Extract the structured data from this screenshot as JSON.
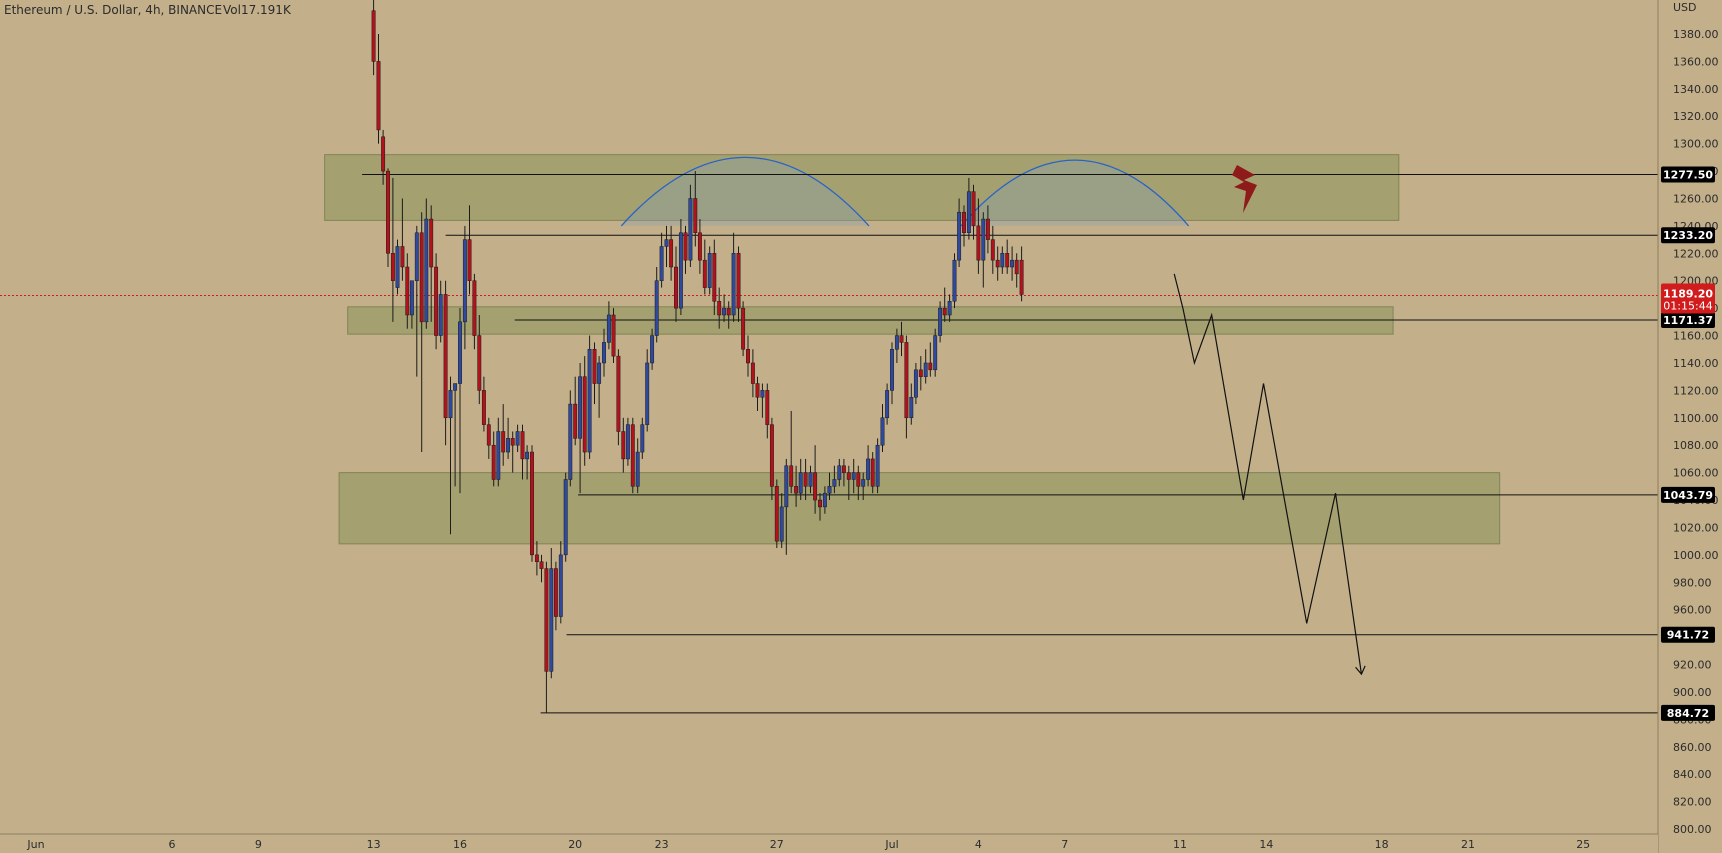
{
  "header": {
    "symbol": "Ethereum / U.S. Dollar, 4h, BINANCE",
    "volume": "Vol17.191K"
  },
  "colors": {
    "background": "#c3b08b",
    "bull": "#2f49a0",
    "bear": "#b3121d",
    "zone_fill": "#7f8f4f",
    "arc": "#2a62c8",
    "current_price_line": "#d01c1c"
  },
  "icons": {
    "lightning": "lightning-bolt-icon"
  },
  "chart_data": {
    "type": "candlestick",
    "currency_label": "USD",
    "ylim": [
      800,
      1400
    ],
    "y_ticks": [
      800,
      820,
      840,
      860,
      880,
      900,
      920,
      940,
      960,
      980,
      1000,
      1020,
      1040,
      1060,
      1080,
      1100,
      1120,
      1140,
      1160,
      1180,
      1200,
      1220,
      1240,
      1260,
      1280,
      1300,
      1320,
      1340,
      1360,
      1380
    ],
    "x_ticks": [
      {
        "label": "Jun",
        "x": 0
      },
      {
        "label": "6",
        "x": 5
      },
      {
        "label": "9",
        "x": 8
      },
      {
        "label": "13",
        "x": 12
      },
      {
        "label": "16",
        "x": 15
      },
      {
        "label": "20",
        "x": 19
      },
      {
        "label": "23",
        "x": 22
      },
      {
        "label": "27",
        "x": 26
      },
      {
        "label": "Jul",
        "x": 30
      },
      {
        "label": "4",
        "x": 33
      },
      {
        "label": "7",
        "x": 36
      },
      {
        "label": "11",
        "x": 40
      },
      {
        "label": "14",
        "x": 43
      },
      {
        "label": "18",
        "x": 47
      },
      {
        "label": "21",
        "x": 50
      },
      {
        "label": "25",
        "x": 54
      }
    ],
    "price_levels": [
      {
        "label": "1277.50",
        "value": 1277.5
      },
      {
        "label": "1233.20",
        "value": 1233.2
      },
      {
        "label": "1171.37",
        "value": 1171.37
      },
      {
        "label": "1043.79",
        "value": 1043.79
      },
      {
        "label": "941.72",
        "value": 941.72
      },
      {
        "label": "884.72",
        "value": 884.72
      }
    ],
    "current_price": {
      "value": 1189.2,
      "label": "1189.20",
      "countdown": "01:15:44"
    },
    "zones": [
      {
        "x_start": 10.3,
        "x_end": 47.6,
        "y_low": 1244,
        "y_high": 1292
      },
      {
        "x_start": 11.1,
        "x_end": 47.4,
        "y_low": 1161,
        "y_high": 1181
      },
      {
        "x_start": 10.8,
        "x_end": 51.1,
        "y_low": 1008,
        "y_high": 1060
      }
    ],
    "level_lines": [
      {
        "value": 1277.5,
        "x_start": 11.6
      },
      {
        "value": 1233.2,
        "x_start": 14.5
      },
      {
        "value": 1171.37,
        "x_start": 16.9
      },
      {
        "value": 1043.79,
        "x_start": 19.1
      },
      {
        "value": 941.72,
        "x_start": 18.7
      },
      {
        "value": 884.72,
        "x_start": 17.8
      }
    ],
    "arcs": [
      {
        "x_start": 20.6,
        "x_end": 29.2,
        "y_base": 1240,
        "y_top": 1290
      },
      {
        "x_start": 32.4,
        "x_end": 40.3,
        "y_base": 1240,
        "y_top": 1288
      }
    ],
    "projection": [
      {
        "x": 39.8,
        "y": 1205
      },
      {
        "x": 40.1,
        "y": 1180
      },
      {
        "x": 40.5,
        "y": 1140
      },
      {
        "x": 41.1,
        "y": 1175
      },
      {
        "x": 42.2,
        "y": 1040
      },
      {
        "x": 42.9,
        "y": 1125
      },
      {
        "x": 44.4,
        "y": 950
      },
      {
        "x": 45.4,
        "y": 1045
      },
      {
        "x": 46.3,
        "y": 913
      }
    ],
    "candles": [
      {
        "x": 12.0,
        "o": 1397,
        "h": 1420,
        "c": 1360,
        "l": 1350
      },
      {
        "x": 12.17,
        "o": 1360,
        "h": 1380,
        "c": 1310,
        "l": 1300
      },
      {
        "x": 12.33,
        "o": 1305,
        "h": 1310,
        "c": 1280,
        "l": 1270
      },
      {
        "x": 12.5,
        "o": 1280,
        "h": 1282,
        "c": 1220,
        "l": 1210
      },
      {
        "x": 12.67,
        "o": 1220,
        "h": 1275,
        "c": 1200,
        "l": 1170
      },
      {
        "x": 12.83,
        "o": 1195,
        "h": 1230,
        "c": 1225,
        "l": 1190
      },
      {
        "x": 13.0,
        "o": 1225,
        "h": 1260,
        "c": 1210,
        "l": 1200
      },
      {
        "x": 13.17,
        "o": 1210,
        "h": 1220,
        "c": 1175,
        "l": 1165
      },
      {
        "x": 13.33,
        "o": 1175,
        "h": 1200,
        "c": 1200,
        "l": 1165
      },
      {
        "x": 13.5,
        "o": 1200,
        "h": 1240,
        "c": 1235,
        "l": 1130
      },
      {
        "x": 13.67,
        "o": 1235,
        "h": 1250,
        "c": 1170,
        "l": 1075
      },
      {
        "x": 13.83,
        "o": 1170,
        "h": 1260,
        "c": 1245,
        "l": 1165
      },
      {
        "x": 14.0,
        "o": 1245,
        "h": 1255,
        "c": 1210,
        "l": 1170
      },
      {
        "x": 14.17,
        "o": 1210,
        "h": 1220,
        "c": 1160,
        "l": 1150
      },
      {
        "x": 14.33,
        "o": 1160,
        "h": 1200,
        "c": 1190,
        "l": 1155
      },
      {
        "x": 14.5,
        "o": 1190,
        "h": 1200,
        "c": 1100,
        "l": 1080
      },
      {
        "x": 14.67,
        "o": 1100,
        "h": 1130,
        "c": 1120,
        "l": 1015
      },
      {
        "x": 14.83,
        "o": 1120,
        "h": 1125,
        "c": 1125,
        "l": 1050
      },
      {
        "x": 15.0,
        "o": 1125,
        "h": 1180,
        "c": 1170,
        "l": 1045
      },
      {
        "x": 15.17,
        "o": 1170,
        "h": 1240,
        "c": 1230,
        "l": 1150
      },
      {
        "x": 15.33,
        "o": 1230,
        "h": 1255,
        "c": 1200,
        "l": 1190
      },
      {
        "x": 15.5,
        "o": 1200,
        "h": 1205,
        "c": 1160,
        "l": 1150
      },
      {
        "x": 15.67,
        "o": 1160,
        "h": 1175,
        "c": 1120,
        "l": 1110
      },
      {
        "x": 15.83,
        "o": 1120,
        "h": 1130,
        "c": 1095,
        "l": 1090
      },
      {
        "x": 16.0,
        "o": 1095,
        "h": 1100,
        "c": 1080,
        "l": 1070
      },
      {
        "x": 16.17,
        "o": 1080,
        "h": 1090,
        "c": 1055,
        "l": 1050
      },
      {
        "x": 16.33,
        "o": 1055,
        "h": 1100,
        "c": 1090,
        "l": 1050
      },
      {
        "x": 16.5,
        "o": 1090,
        "h": 1110,
        "c": 1075,
        "l": 1065
      },
      {
        "x": 16.67,
        "o": 1075,
        "h": 1100,
        "c": 1085,
        "l": 1070
      },
      {
        "x": 16.83,
        "o": 1085,
        "h": 1090,
        "c": 1080,
        "l": 1060
      },
      {
        "x": 17.0,
        "o": 1080,
        "h": 1095,
        "c": 1090,
        "l": 1075
      },
      {
        "x": 17.17,
        "o": 1090,
        "h": 1095,
        "c": 1070,
        "l": 1055
      },
      {
        "x": 17.33,
        "o": 1070,
        "h": 1080,
        "c": 1075,
        "l": 1055
      },
      {
        "x": 17.5,
        "o": 1075,
        "h": 1080,
        "c": 1000,
        "l": 995
      },
      {
        "x": 17.67,
        "o": 1000,
        "h": 1010,
        "c": 995,
        "l": 985
      },
      {
        "x": 17.83,
        "o": 995,
        "h": 1000,
        "c": 990,
        "l": 980
      },
      {
        "x": 18.0,
        "o": 990,
        "h": 995,
        "c": 915,
        "l": 885
      },
      {
        "x": 18.17,
        "o": 915,
        "h": 1005,
        "c": 990,
        "l": 910
      },
      {
        "x": 18.33,
        "o": 990,
        "h": 995,
        "c": 955,
        "l": 945
      },
      {
        "x": 18.5,
        "o": 955,
        "h": 1010,
        "c": 1000,
        "l": 950
      },
      {
        "x": 18.67,
        "o": 1000,
        "h": 1060,
        "c": 1055,
        "l": 995
      },
      {
        "x": 18.83,
        "o": 1055,
        "h": 1120,
        "c": 1110,
        "l": 1050
      },
      {
        "x": 19.0,
        "o": 1110,
        "h": 1130,
        "c": 1085,
        "l": 1080
      },
      {
        "x": 19.17,
        "o": 1085,
        "h": 1140,
        "c": 1130,
        "l": 1045
      },
      {
        "x": 19.33,
        "o": 1130,
        "h": 1145,
        "c": 1075,
        "l": 1065
      },
      {
        "x": 19.5,
        "o": 1075,
        "h": 1160,
        "c": 1150,
        "l": 1070
      },
      {
        "x": 19.67,
        "o": 1150,
        "h": 1155,
        "c": 1125,
        "l": 1110
      },
      {
        "x": 19.83,
        "o": 1125,
        "h": 1145,
        "c": 1140,
        "l": 1100
      },
      {
        "x": 20.0,
        "o": 1140,
        "h": 1165,
        "c": 1155,
        "l": 1130
      },
      {
        "x": 20.17,
        "o": 1155,
        "h": 1185,
        "c": 1175,
        "l": 1150
      },
      {
        "x": 20.33,
        "o": 1175,
        "h": 1180,
        "c": 1145,
        "l": 1140
      },
      {
        "x": 20.5,
        "o": 1145,
        "h": 1150,
        "c": 1090,
        "l": 1080
      },
      {
        "x": 20.67,
        "o": 1090,
        "h": 1100,
        "c": 1070,
        "l": 1060
      },
      {
        "x": 20.83,
        "o": 1070,
        "h": 1100,
        "c": 1095,
        "l": 1065
      },
      {
        "x": 21.0,
        "o": 1095,
        "h": 1100,
        "c": 1050,
        "l": 1045
      },
      {
        "x": 21.17,
        "o": 1050,
        "h": 1085,
        "c": 1075,
        "l": 1045
      },
      {
        "x": 21.33,
        "o": 1075,
        "h": 1100,
        "c": 1095,
        "l": 1070
      },
      {
        "x": 21.5,
        "o": 1095,
        "h": 1150,
        "c": 1140,
        "l": 1090
      },
      {
        "x": 21.67,
        "o": 1140,
        "h": 1165,
        "c": 1160,
        "l": 1135
      },
      {
        "x": 21.83,
        "o": 1160,
        "h": 1210,
        "c": 1200,
        "l": 1155
      },
      {
        "x": 22.0,
        "o": 1200,
        "h": 1235,
        "c": 1225,
        "l": 1195
      },
      {
        "x": 22.17,
        "o": 1225,
        "h": 1240,
        "c": 1230,
        "l": 1210
      },
      {
        "x": 22.33,
        "o": 1230,
        "h": 1240,
        "c": 1210,
        "l": 1200
      },
      {
        "x": 22.5,
        "o": 1210,
        "h": 1225,
        "c": 1180,
        "l": 1170
      },
      {
        "x": 22.67,
        "o": 1180,
        "h": 1245,
        "c": 1235,
        "l": 1175
      },
      {
        "x": 22.83,
        "o": 1235,
        "h": 1240,
        "c": 1215,
        "l": 1205
      },
      {
        "x": 23.0,
        "o": 1215,
        "h": 1270,
        "c": 1260,
        "l": 1210
      },
      {
        "x": 23.17,
        "o": 1260,
        "h": 1280,
        "c": 1235,
        "l": 1225
      },
      {
        "x": 23.33,
        "o": 1235,
        "h": 1245,
        "c": 1215,
        "l": 1205
      },
      {
        "x": 23.5,
        "o": 1215,
        "h": 1230,
        "c": 1195,
        "l": 1190
      },
      {
        "x": 23.67,
        "o": 1195,
        "h": 1225,
        "c": 1220,
        "l": 1190
      },
      {
        "x": 23.83,
        "o": 1220,
        "h": 1230,
        "c": 1185,
        "l": 1175
      },
      {
        "x": 24.0,
        "o": 1185,
        "h": 1195,
        "c": 1175,
        "l": 1165
      },
      {
        "x": 24.17,
        "o": 1175,
        "h": 1190,
        "c": 1180,
        "l": 1170
      },
      {
        "x": 24.33,
        "o": 1180,
        "h": 1185,
        "c": 1175,
        "l": 1165
      },
      {
        "x": 24.5,
        "o": 1175,
        "h": 1235,
        "c": 1220,
        "l": 1170
      },
      {
        "x": 24.67,
        "o": 1220,
        "h": 1225,
        "c": 1180,
        "l": 1170
      },
      {
        "x": 24.83,
        "o": 1180,
        "h": 1185,
        "c": 1150,
        "l": 1145
      },
      {
        "x": 25.0,
        "o": 1150,
        "h": 1160,
        "c": 1140,
        "l": 1130
      },
      {
        "x": 25.17,
        "o": 1140,
        "h": 1150,
        "c": 1125,
        "l": 1115
      },
      {
        "x": 25.33,
        "o": 1125,
        "h": 1130,
        "c": 1115,
        "l": 1105
      },
      {
        "x": 25.5,
        "o": 1115,
        "h": 1125,
        "c": 1120,
        "l": 1100
      },
      {
        "x": 25.67,
        "o": 1120,
        "h": 1125,
        "c": 1095,
        "l": 1085
      },
      {
        "x": 25.83,
        "o": 1095,
        "h": 1100,
        "c": 1050,
        "l": 1040
      },
      {
        "x": 26.0,
        "o": 1050,
        "h": 1055,
        "c": 1010,
        "l": 1005
      },
      {
        "x": 26.17,
        "o": 1010,
        "h": 1045,
        "c": 1035,
        "l": 1005
      },
      {
        "x": 26.33,
        "o": 1035,
        "h": 1070,
        "c": 1065,
        "l": 1000
      },
      {
        "x": 26.5,
        "o": 1065,
        "h": 1105,
        "c": 1050,
        "l": 1045
      },
      {
        "x": 26.67,
        "o": 1050,
        "h": 1065,
        "c": 1045,
        "l": 1035
      },
      {
        "x": 26.83,
        "o": 1045,
        "h": 1070,
        "c": 1060,
        "l": 1040
      },
      {
        "x": 27.0,
        "o": 1060,
        "h": 1070,
        "c": 1050,
        "l": 1040
      },
      {
        "x": 27.17,
        "o": 1050,
        "h": 1065,
        "c": 1060,
        "l": 1045
      },
      {
        "x": 27.33,
        "o": 1060,
        "h": 1080,
        "c": 1040,
        "l": 1030
      },
      {
        "x": 27.5,
        "o": 1040,
        "h": 1045,
        "c": 1035,
        "l": 1025
      },
      {
        "x": 27.67,
        "o": 1035,
        "h": 1050,
        "c": 1045,
        "l": 1030
      },
      {
        "x": 27.83,
        "o": 1045,
        "h": 1060,
        "c": 1050,
        "l": 1040
      },
      {
        "x": 28.0,
        "o": 1050,
        "h": 1065,
        "c": 1055,
        "l": 1045
      },
      {
        "x": 28.17,
        "o": 1055,
        "h": 1070,
        "c": 1065,
        "l": 1050
      },
      {
        "x": 28.33,
        "o": 1065,
        "h": 1070,
        "c": 1060,
        "l": 1050
      },
      {
        "x": 28.5,
        "o": 1060,
        "h": 1065,
        "c": 1055,
        "l": 1040
      },
      {
        "x": 28.67,
        "o": 1055,
        "h": 1070,
        "c": 1060,
        "l": 1045
      },
      {
        "x": 28.83,
        "o": 1060,
        "h": 1065,
        "c": 1050,
        "l": 1040
      },
      {
        "x": 29.0,
        "o": 1050,
        "h": 1060,
        "c": 1055,
        "l": 1040
      },
      {
        "x": 29.17,
        "o": 1055,
        "h": 1080,
        "c": 1070,
        "l": 1050
      },
      {
        "x": 29.33,
        "o": 1070,
        "h": 1075,
        "c": 1050,
        "l": 1045
      },
      {
        "x": 29.5,
        "o": 1050,
        "h": 1085,
        "c": 1080,
        "l": 1045
      },
      {
        "x": 29.67,
        "o": 1080,
        "h": 1110,
        "c": 1100,
        "l": 1075
      },
      {
        "x": 29.83,
        "o": 1100,
        "h": 1125,
        "c": 1120,
        "l": 1095
      },
      {
        "x": 30.0,
        "o": 1120,
        "h": 1155,
        "c": 1150,
        "l": 1110
      },
      {
        "x": 30.17,
        "o": 1150,
        "h": 1165,
        "c": 1160,
        "l": 1140
      },
      {
        "x": 30.33,
        "o": 1160,
        "h": 1170,
        "c": 1155,
        "l": 1145
      },
      {
        "x": 30.5,
        "o": 1155,
        "h": 1160,
        "c": 1100,
        "l": 1085
      },
      {
        "x": 30.67,
        "o": 1100,
        "h": 1125,
        "c": 1115,
        "l": 1095
      },
      {
        "x": 30.83,
        "o": 1115,
        "h": 1140,
        "c": 1135,
        "l": 1110
      },
      {
        "x": 31.0,
        "o": 1135,
        "h": 1145,
        "c": 1130,
        "l": 1120
      },
      {
        "x": 31.17,
        "o": 1130,
        "h": 1150,
        "c": 1140,
        "l": 1125
      },
      {
        "x": 31.33,
        "o": 1140,
        "h": 1155,
        "c": 1135,
        "l": 1130
      },
      {
        "x": 31.5,
        "o": 1135,
        "h": 1165,
        "c": 1160,
        "l": 1130
      },
      {
        "x": 31.67,
        "o": 1160,
        "h": 1185,
        "c": 1180,
        "l": 1155
      },
      {
        "x": 31.83,
        "o": 1180,
        "h": 1195,
        "c": 1175,
        "l": 1170
      },
      {
        "x": 32.0,
        "o": 1175,
        "h": 1190,
        "c": 1185,
        "l": 1170
      },
      {
        "x": 32.17,
        "o": 1185,
        "h": 1220,
        "c": 1215,
        "l": 1180
      },
      {
        "x": 32.33,
        "o": 1215,
        "h": 1260,
        "c": 1250,
        "l": 1210
      },
      {
        "x": 32.5,
        "o": 1250,
        "h": 1255,
        "c": 1235,
        "l": 1225
      },
      {
        "x": 32.67,
        "o": 1235,
        "h": 1275,
        "c": 1265,
        "l": 1230
      },
      {
        "x": 32.83,
        "o": 1265,
        "h": 1270,
        "c": 1240,
        "l": 1230
      },
      {
        "x": 33.0,
        "o": 1240,
        "h": 1260,
        "c": 1215,
        "l": 1205
      },
      {
        "x": 33.17,
        "o": 1215,
        "h": 1250,
        "c": 1245,
        "l": 1195
      },
      {
        "x": 33.33,
        "o": 1245,
        "h": 1255,
        "c": 1230,
        "l": 1220
      },
      {
        "x": 33.5,
        "o": 1230,
        "h": 1240,
        "c": 1215,
        "l": 1205
      },
      {
        "x": 33.67,
        "o": 1215,
        "h": 1225,
        "c": 1210,
        "l": 1200
      },
      {
        "x": 33.83,
        "o": 1210,
        "h": 1225,
        "c": 1220,
        "l": 1205
      },
      {
        "x": 34.0,
        "o": 1220,
        "h": 1230,
        "c": 1210,
        "l": 1205
      },
      {
        "x": 34.17,
        "o": 1210,
        "h": 1225,
        "c": 1215,
        "l": 1200
      },
      {
        "x": 34.33,
        "o": 1215,
        "h": 1220,
        "c": 1205,
        "l": 1195
      },
      {
        "x": 34.5,
        "o": 1215,
        "h": 1225,
        "c": 1190,
        "l": 1185
      }
    ]
  }
}
